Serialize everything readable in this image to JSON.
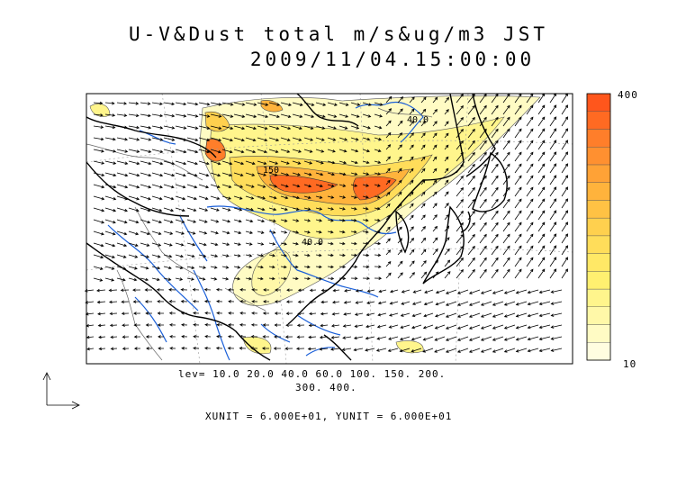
{
  "title": {
    "line1": "U-V&Dust total m/s&ug/m3 JST",
    "line2": "2009/11/04.15:00:00"
  },
  "colorbar": {
    "max_label": "400",
    "min_label": "10",
    "colors": [
      "#fffde0",
      "#fffbc4",
      "#fff8a8",
      "#fff58c",
      "#fff070",
      "#ffe866",
      "#ffdd5a",
      "#ffd04e",
      "#ffc244",
      "#ffb33c",
      "#ffa236",
      "#ff9030",
      "#ff7e2a",
      "#ff6a22",
      "#ff561c"
    ]
  },
  "map": {
    "contour_labels": [
      "40.0",
      "150",
      "40.0"
    ],
    "land_outline_color": "#000000",
    "river_color": "#1a5fd8",
    "vector_color": "#000000"
  },
  "captions": {
    "levels_line1": "lev= 10.0 20.0 40.0 60.0 100. 150. 200.",
    "levels_line2": "300. 400.",
    "units": "XUNIT = 6.000E+01, YUNIT = 6.000E+01"
  }
}
